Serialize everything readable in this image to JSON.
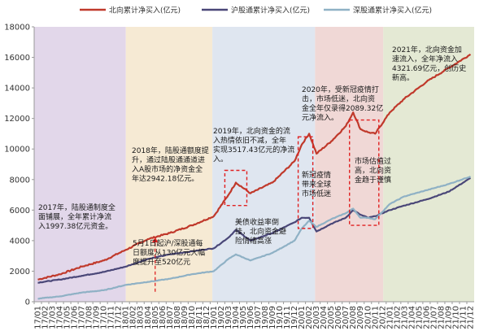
{
  "chart_data": {
    "type": "line",
    "ylim": [
      0,
      18000
    ],
    "yticks": [
      0,
      2000,
      4000,
      6000,
      8000,
      10000,
      12000,
      14000,
      16000,
      18000
    ],
    "xticks": [
      "17/01",
      "17/02",
      "17/03",
      "17/04",
      "17/05",
      "17/06",
      "17/07",
      "17/08",
      "17/09",
      "17/10",
      "17/11",
      "17/12",
      "18/01",
      "18/02",
      "18/03",
      "18/04",
      "18/05",
      "18/06",
      "18/07",
      "18/08",
      "18/09",
      "18/10",
      "18/11",
      "18/12",
      "19/01",
      "19/02",
      "19/03",
      "19/04",
      "19/05",
      "19/06",
      "19/07",
      "19/08",
      "19/09",
      "19/10",
      "19/11",
      "19/12",
      "20/01",
      "20/02",
      "20/03",
      "20/04",
      "20/05",
      "20/06",
      "20/07",
      "20/08",
      "20/09",
      "20/10",
      "20/11",
      "20/12",
      "21/01",
      "21/02",
      "21/03",
      "21/04",
      "21/05",
      "21/06",
      "21/07",
      "21/08",
      "21/09",
      "21/10",
      "21/11",
      "21/12"
    ],
    "x": [
      "17/01",
      "17/04",
      "17/07",
      "17/10",
      "18/01",
      "18/04",
      "18/07",
      "18/10",
      "19/01",
      "19/03",
      "19/04",
      "19/06",
      "19/09",
      "19/12",
      "20/01",
      "20/02",
      "20/03",
      "20/05",
      "20/07",
      "20/08",
      "20/09",
      "20/10",
      "20/11",
      "21/01",
      "21/03",
      "21/06",
      "21/09",
      "21/12"
    ],
    "series": [
      {
        "name": "北向累计净买入(亿元)",
        "color": "#c0392b",
        "values": [
          1450,
          1800,
          2300,
          2700,
          3400,
          4100,
          4500,
          5000,
          5600,
          7000,
          7800,
          7100,
          7800,
          9200,
          10300,
          11000,
          9700,
          10500,
          11500,
          12400,
          11300,
          11100,
          11000,
          12400,
          13300,
          14400,
          15300,
          16200
        ]
      },
      {
        "name": "沪股通累计净买入(亿元)",
        "color": "#4a4778",
        "values": [
          1250,
          1450,
          1700,
          1950,
          2300,
          2800,
          3100,
          3300,
          3500,
          4200,
          4700,
          4000,
          4500,
          5200,
          5500,
          5500,
          4600,
          5100,
          5500,
          6000,
          5700,
          5500,
          5600,
          6000,
          6300,
          6700,
          7200,
          8100
        ]
      },
      {
        "name": "深股通累计净买入(亿元)",
        "color": "#8fb1c5",
        "values": [
          200,
          350,
          600,
          750,
          1100,
          1300,
          1500,
          1800,
          2000,
          2800,
          3100,
          2700,
          3200,
          4000,
          4800,
          5300,
          4900,
          5400,
          5800,
          6100,
          5500,
          5500,
          5400,
          6400,
          6900,
          7300,
          7700,
          8200
        ]
      }
    ],
    "legend_position": "top",
    "grid": false,
    "shaded_periods": [
      {
        "color": "#e2d7ea"
      },
      {
        "color": "#f6ead4"
      },
      {
        "color": "#dfe6f0"
      },
      {
        "color": "#f0d8d6"
      },
      {
        "color": "#e4e9d4"
      }
    ],
    "annotations": [
      {
        "lines": [
          "2017年，陆股通制度全",
          "面铺展，全年累计净流",
          "入1997.38亿元资金。"
        ]
      },
      {
        "lines": [
          "2018年，陆股通额度提",
          "升，通过陆股通通道进",
          "入A股市场的净资金全",
          "年达2942.18亿元。"
        ]
      },
      {
        "lines": [
          "5月1日起沪/深股通每",
          "日额度从130亿元大幅",
          "度提升至520亿元"
        ]
      },
      {
        "lines": [
          "2019年，北向资金的流",
          "入热情依旧不减，全年",
          "实现3517.43亿元的净流",
          "入。"
        ]
      },
      {
        "lines": [
          "美债收益率倒",
          "挂，北向资金避",
          "险情绪高涨"
        ]
      },
      {
        "lines": [
          "2020年，受新冠疫情打",
          "击，市场低迷，北向资",
          "金全年仅录得2089.32亿",
          "元净流入。"
        ]
      },
      {
        "lines": [
          "新冠疫情",
          "带来全球",
          "市场低迷"
        ]
      },
      {
        "lines": [
          "市场估值过",
          "高，北向资",
          "金趋于谨慎"
        ]
      },
      {
        "lines": [
          "2021年，北向资金加",
          "速流入，全年净流入",
          "4321.69亿元，创历史",
          "新高。"
        ]
      }
    ]
  }
}
